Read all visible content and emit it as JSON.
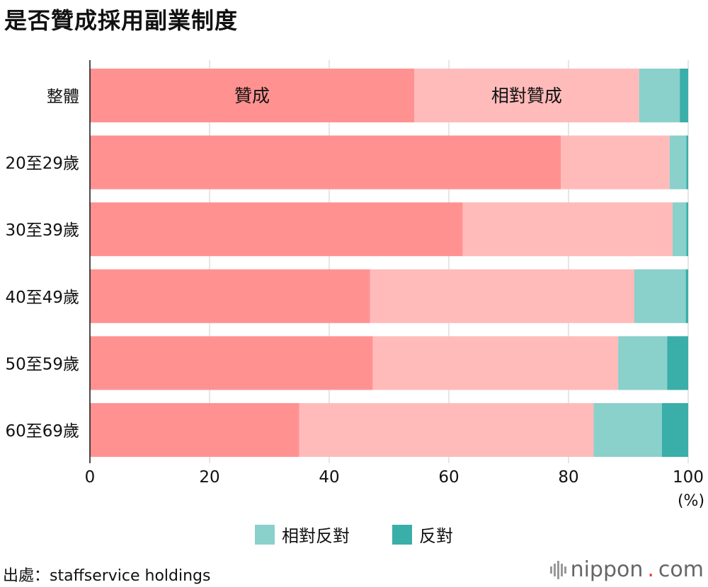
{
  "title": "是否贊成採用副業制度",
  "chart_data": {
    "type": "bar",
    "orientation": "horizontal",
    "stacked": true,
    "categories": [
      "整體",
      "20至29歲",
      "30至39歲",
      "40至49歲",
      "50至59歲",
      "60至69歲"
    ],
    "series": [
      {
        "name": "贊成",
        "color": "#ff9291",
        "values": [
          54.2,
          78.7,
          62.3,
          46.8,
          47.3,
          35.0
        ]
      },
      {
        "name": "相對贊成",
        "color": "#ffbbba",
        "values": [
          37.6,
          18.2,
          35.1,
          44.2,
          41.0,
          49.2
        ]
      },
      {
        "name": "相對反對",
        "color": "#8ad0cb",
        "values": [
          6.8,
          2.8,
          2.3,
          8.6,
          8.2,
          11.4
        ]
      },
      {
        "name": "反對",
        "color": "#3aaea9",
        "values": [
          1.4,
          0.3,
          0.3,
          0.4,
          3.5,
          4.4
        ]
      }
    ],
    "xlim": [
      0,
      100
    ],
    "xticks": [
      "0",
      "20",
      "40",
      "60",
      "80",
      "100"
    ],
    "xunit": "(%)",
    "grid": true,
    "inline_labels": [
      "贊成",
      "相對贊成"
    ],
    "legend": "bottom"
  },
  "source": "出處：staffservice holdings",
  "brand": {
    "name": "nippon",
    "dot": ".",
    "suffix": "com"
  }
}
